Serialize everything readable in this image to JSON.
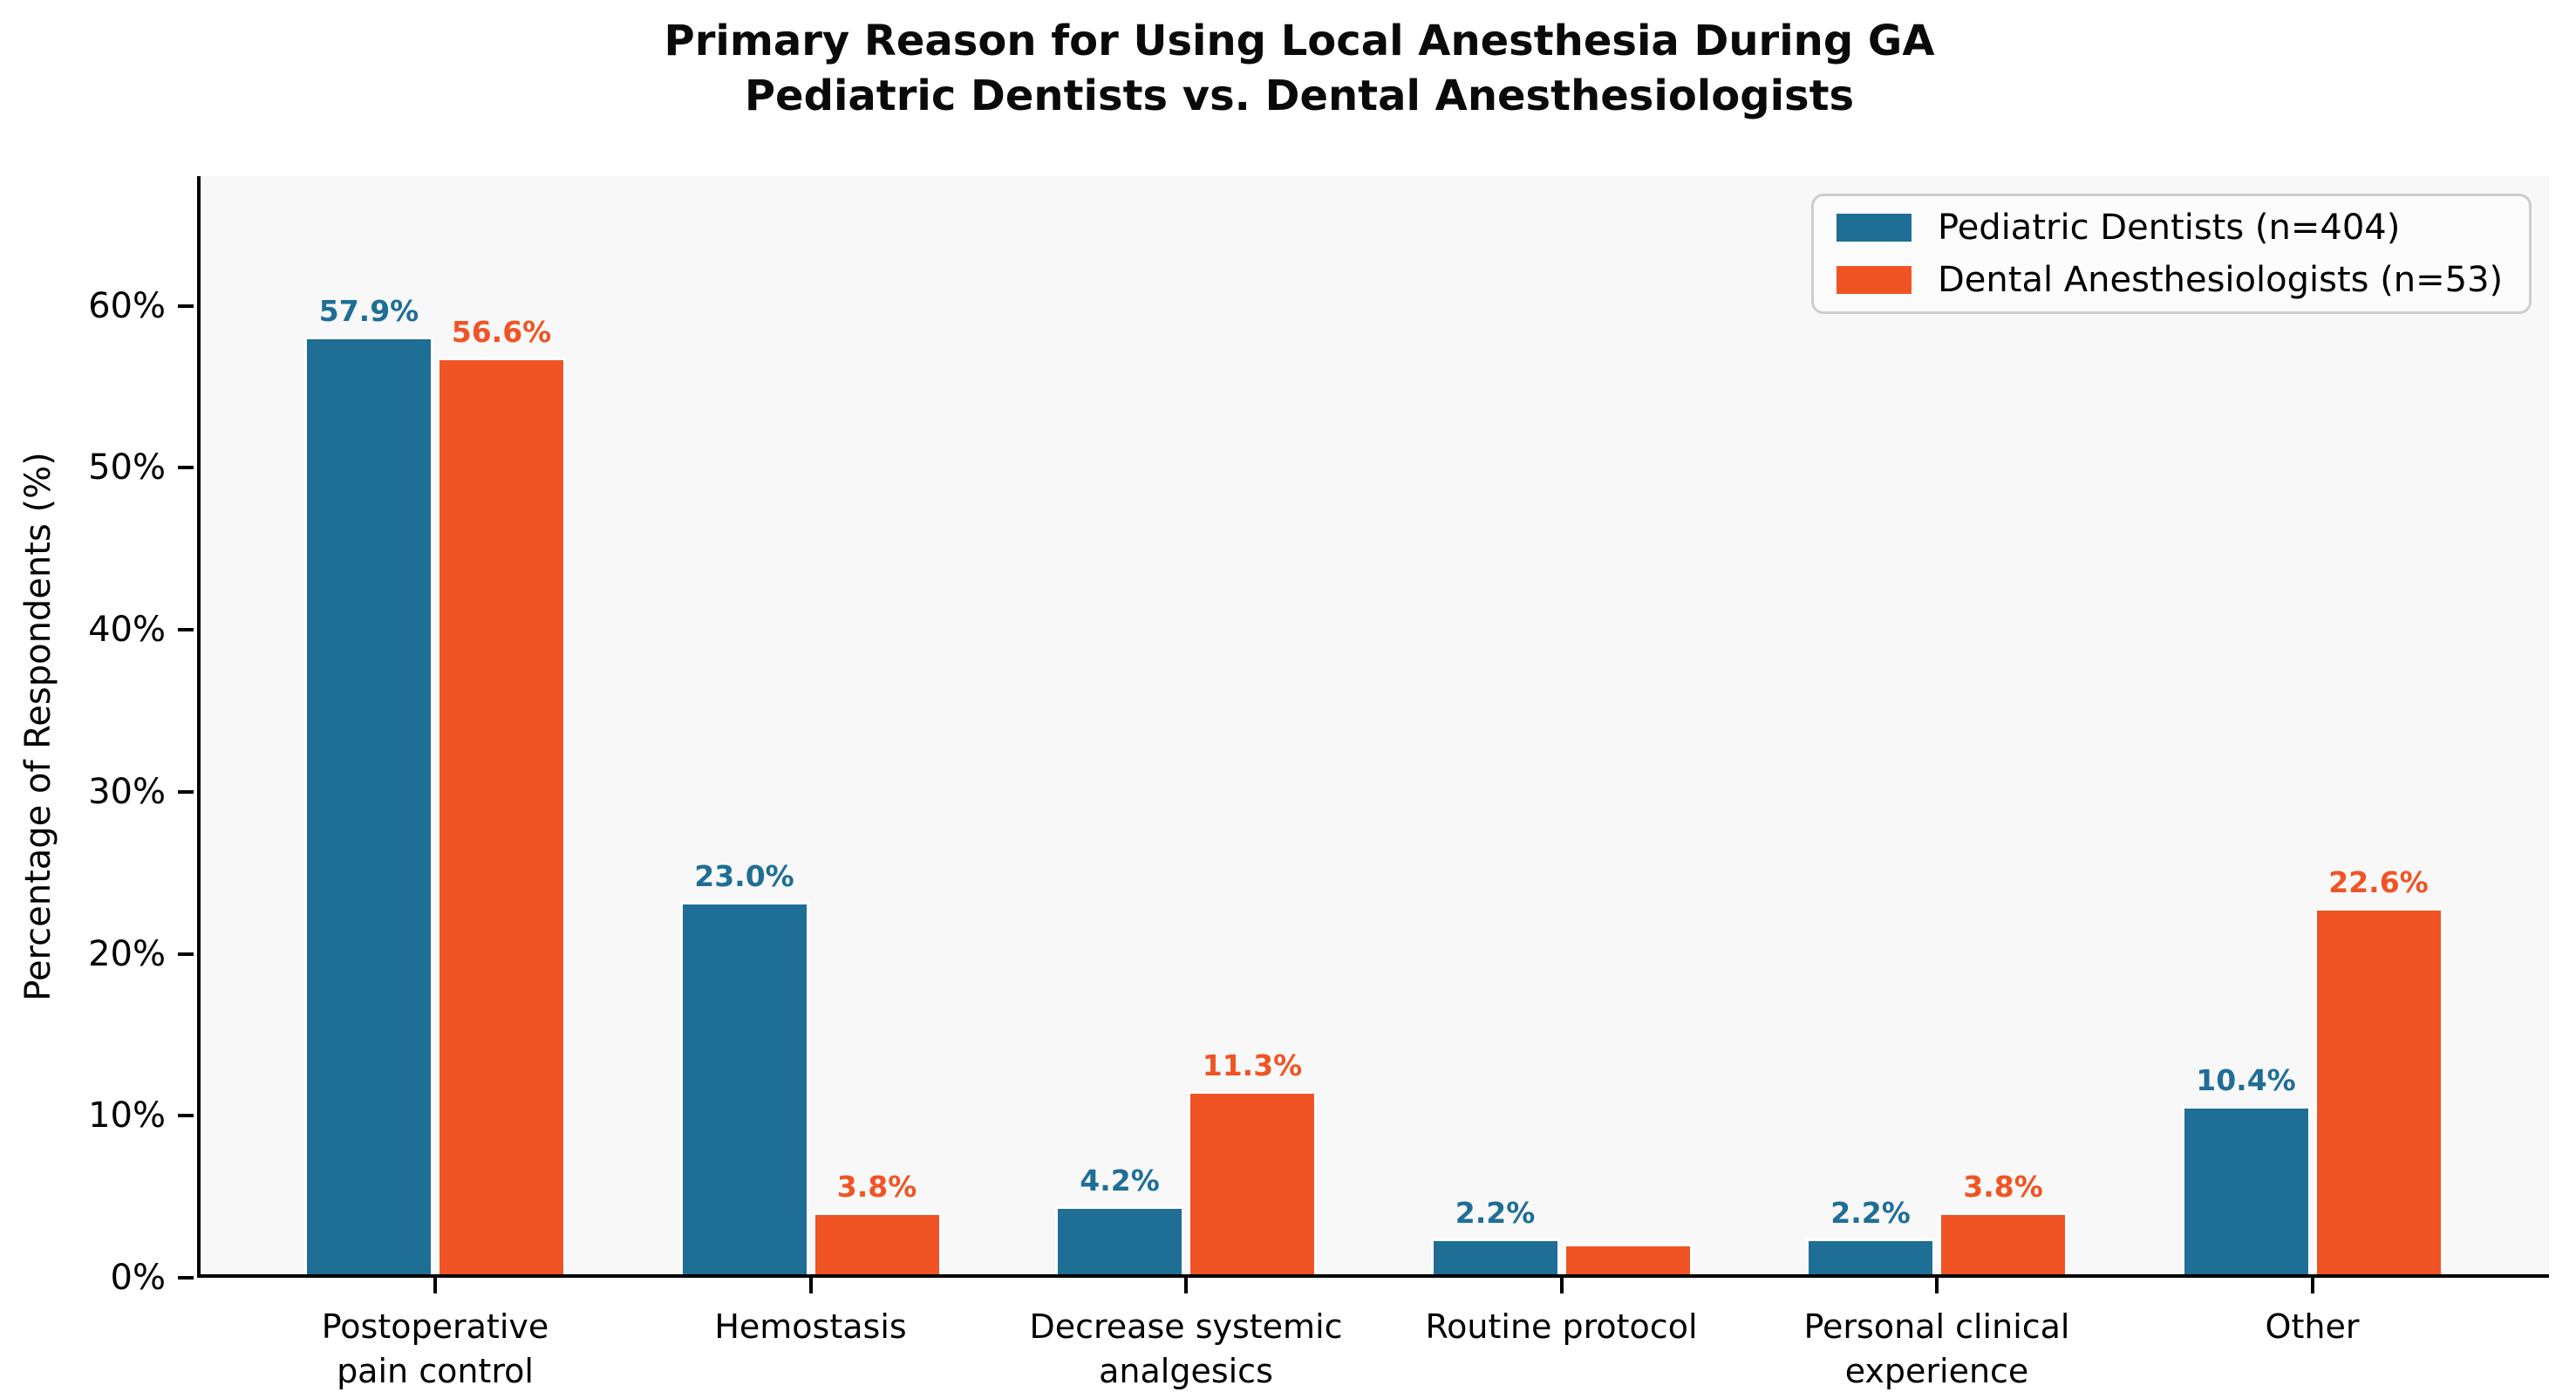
{
  "chart_data": {
    "type": "bar",
    "title": "Primary Reason for Using Local Anesthesia During GA\nPediatric Dentists vs. Dental Anesthesiologists",
    "ylabel": "Percentage of Respondents (%)",
    "ylim": [
      0,
      68
    ],
    "yticks": [
      {
        "value": 0,
        "label": "0%"
      },
      {
        "value": 10,
        "label": "10%"
      },
      {
        "value": 20,
        "label": "20%"
      },
      {
        "value": 30,
        "label": "30%"
      },
      {
        "value": 40,
        "label": "40%"
      },
      {
        "value": 50,
        "label": "50%"
      },
      {
        "value": 60,
        "label": "60%"
      }
    ],
    "grid": false,
    "legend_position": "upper right",
    "categories": [
      "Postoperative\npain control",
      "Hemostasis",
      "Decrease systemic\nanalgesics",
      "Routine protocol",
      "Personal clinical\nexperience",
      "Other"
    ],
    "series": [
      {
        "name": "Pediatric Dentists (n=404)",
        "slug": "pediatric-dentists",
        "color": "#1f6e96",
        "values": [
          57.9,
          23.0,
          4.2,
          2.2,
          2.2,
          10.4
        ],
        "bar_labels": [
          "57.9%",
          "23.0%",
          "4.2%",
          "2.2%",
          "2.2%",
          "10.4%"
        ]
      },
      {
        "name": "Dental Anesthesiologists (n=53)",
        "slug": "dental-anesthesiologists",
        "color": "#f05425",
        "values": [
          56.6,
          3.8,
          11.3,
          1.9,
          3.8,
          22.6
        ],
        "bar_labels": [
          "56.6%",
          "3.8%",
          "11.3%",
          "",
          "3.8%",
          "22.6%"
        ]
      }
    ],
    "colors": {
      "plot_background": "#f8f8f8",
      "figure_background": "#ffffff",
      "axis": "#000000",
      "legend_border": "#cdcdcd"
    }
  }
}
